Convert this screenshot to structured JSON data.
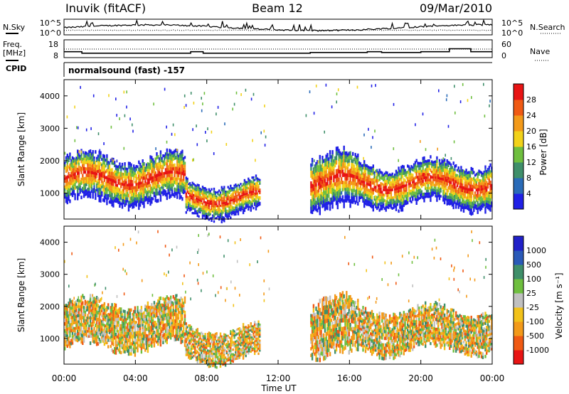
{
  "header": {
    "station": "Inuvik (fitACF)",
    "beam": "Beam 12",
    "date": "09/Mar/2010"
  },
  "labels": {
    "nsky": "N.Sky",
    "nsearch": "N.Search",
    "freq_line1": "Freq.",
    "freq_line2": "[MHz]",
    "nave": "Nave",
    "cpid": "CPID",
    "cpid_value": "normalsound (fast) -157",
    "power_label": "Power [dB]",
    "velocity_label": "Velocity [m s⁻¹]"
  },
  "chart_data": [
    {
      "type": "line",
      "panel": "noise",
      "series": [
        {
          "name": "N.Sky"
        },
        {
          "name": "N.Search"
        }
      ],
      "yticks_left": [
        "10^5",
        "10^0"
      ],
      "yticks_right": [
        "10^5",
        "10^0"
      ]
    },
    {
      "type": "line",
      "panel": "frequency",
      "series": [
        {
          "name": "Freq. [MHz]"
        },
        {
          "name": "Nave"
        }
      ],
      "yticks_left": [
        "18",
        "8"
      ],
      "yticks_right": [
        "60",
        "0"
      ],
      "freq_steps": [
        {
          "t0": 0,
          "t1": 1,
          "v": 11
        },
        {
          "t0": 1,
          "t1": 7.1,
          "v": 10
        },
        {
          "t0": 7.1,
          "t1": 7.8,
          "v": 11
        },
        {
          "t0": 7.8,
          "t1": 13.8,
          "v": 10
        },
        {
          "t0": 13.8,
          "t1": 17.0,
          "v": 10.5
        },
        {
          "t0": 17.0,
          "t1": 17.8,
          "v": 11
        },
        {
          "t0": 17.8,
          "t1": 20.0,
          "v": 10.5
        },
        {
          "t0": 20.0,
          "t1": 21.6,
          "v": 11
        },
        {
          "t0": 21.6,
          "t1": 22.8,
          "v": 13
        },
        {
          "t0": 22.8,
          "t1": 24,
          "v": 11
        }
      ]
    },
    {
      "type": "heatmap",
      "panel": "power",
      "ylabel": "Slant Range [km]",
      "xlim": [
        0,
        24
      ],
      "ylim": [
        200,
        4500
      ],
      "yticks": [
        "1000",
        "2000",
        "3000",
        "4000"
      ],
      "colorbar_label": "Power [dB]",
      "colorbar_ticks": [
        "4",
        "8",
        "12",
        "16",
        "20",
        "24",
        "28"
      ],
      "colors": [
        "#2020e6",
        "#2a6bb8",
        "#3f8f6a",
        "#6fbf3f",
        "#f2d21a",
        "#f39a1a",
        "#f05a14",
        "#e81414"
      ],
      "echo_bands": [
        {
          "t0": 0,
          "t1": 6.8,
          "r0": 600,
          "r1": 2200,
          "peak": 28
        },
        {
          "t0": 6.8,
          "t1": 11.0,
          "r0": 250,
          "r1": 1400,
          "peak": 26
        },
        {
          "t0": 13.8,
          "t1": 16.5,
          "r0": 300,
          "r1": 2300,
          "peak": 24
        },
        {
          "t0": 16.5,
          "t1": 24,
          "r0": 500,
          "r1": 2000,
          "peak": 28
        }
      ]
    },
    {
      "type": "heatmap",
      "panel": "velocity",
      "ylabel": "Slant Range [km]",
      "xlabel": "Time UT",
      "xlim": [
        0,
        24
      ],
      "ylim": [
        200,
        4500
      ],
      "yticks": [
        "1000",
        "2000",
        "3000",
        "4000"
      ],
      "xticks": [
        "00:00",
        "04:00",
        "08:00",
        "12:00",
        "16:00",
        "20:00",
        "00:00"
      ],
      "colorbar_label": "Velocity [m s⁻¹]",
      "colorbar_ticks": [
        "1000",
        "500",
        "100",
        "25",
        "-25",
        "-100",
        "-500",
        "-1000"
      ],
      "colors": [
        "#2020c8",
        "#2a5ab8",
        "#3f8f6a",
        "#6fbf3f",
        "#c0c0c0",
        "#f2c21a",
        "#f39a1a",
        "#f05a14",
        "#e81414"
      ]
    }
  ]
}
